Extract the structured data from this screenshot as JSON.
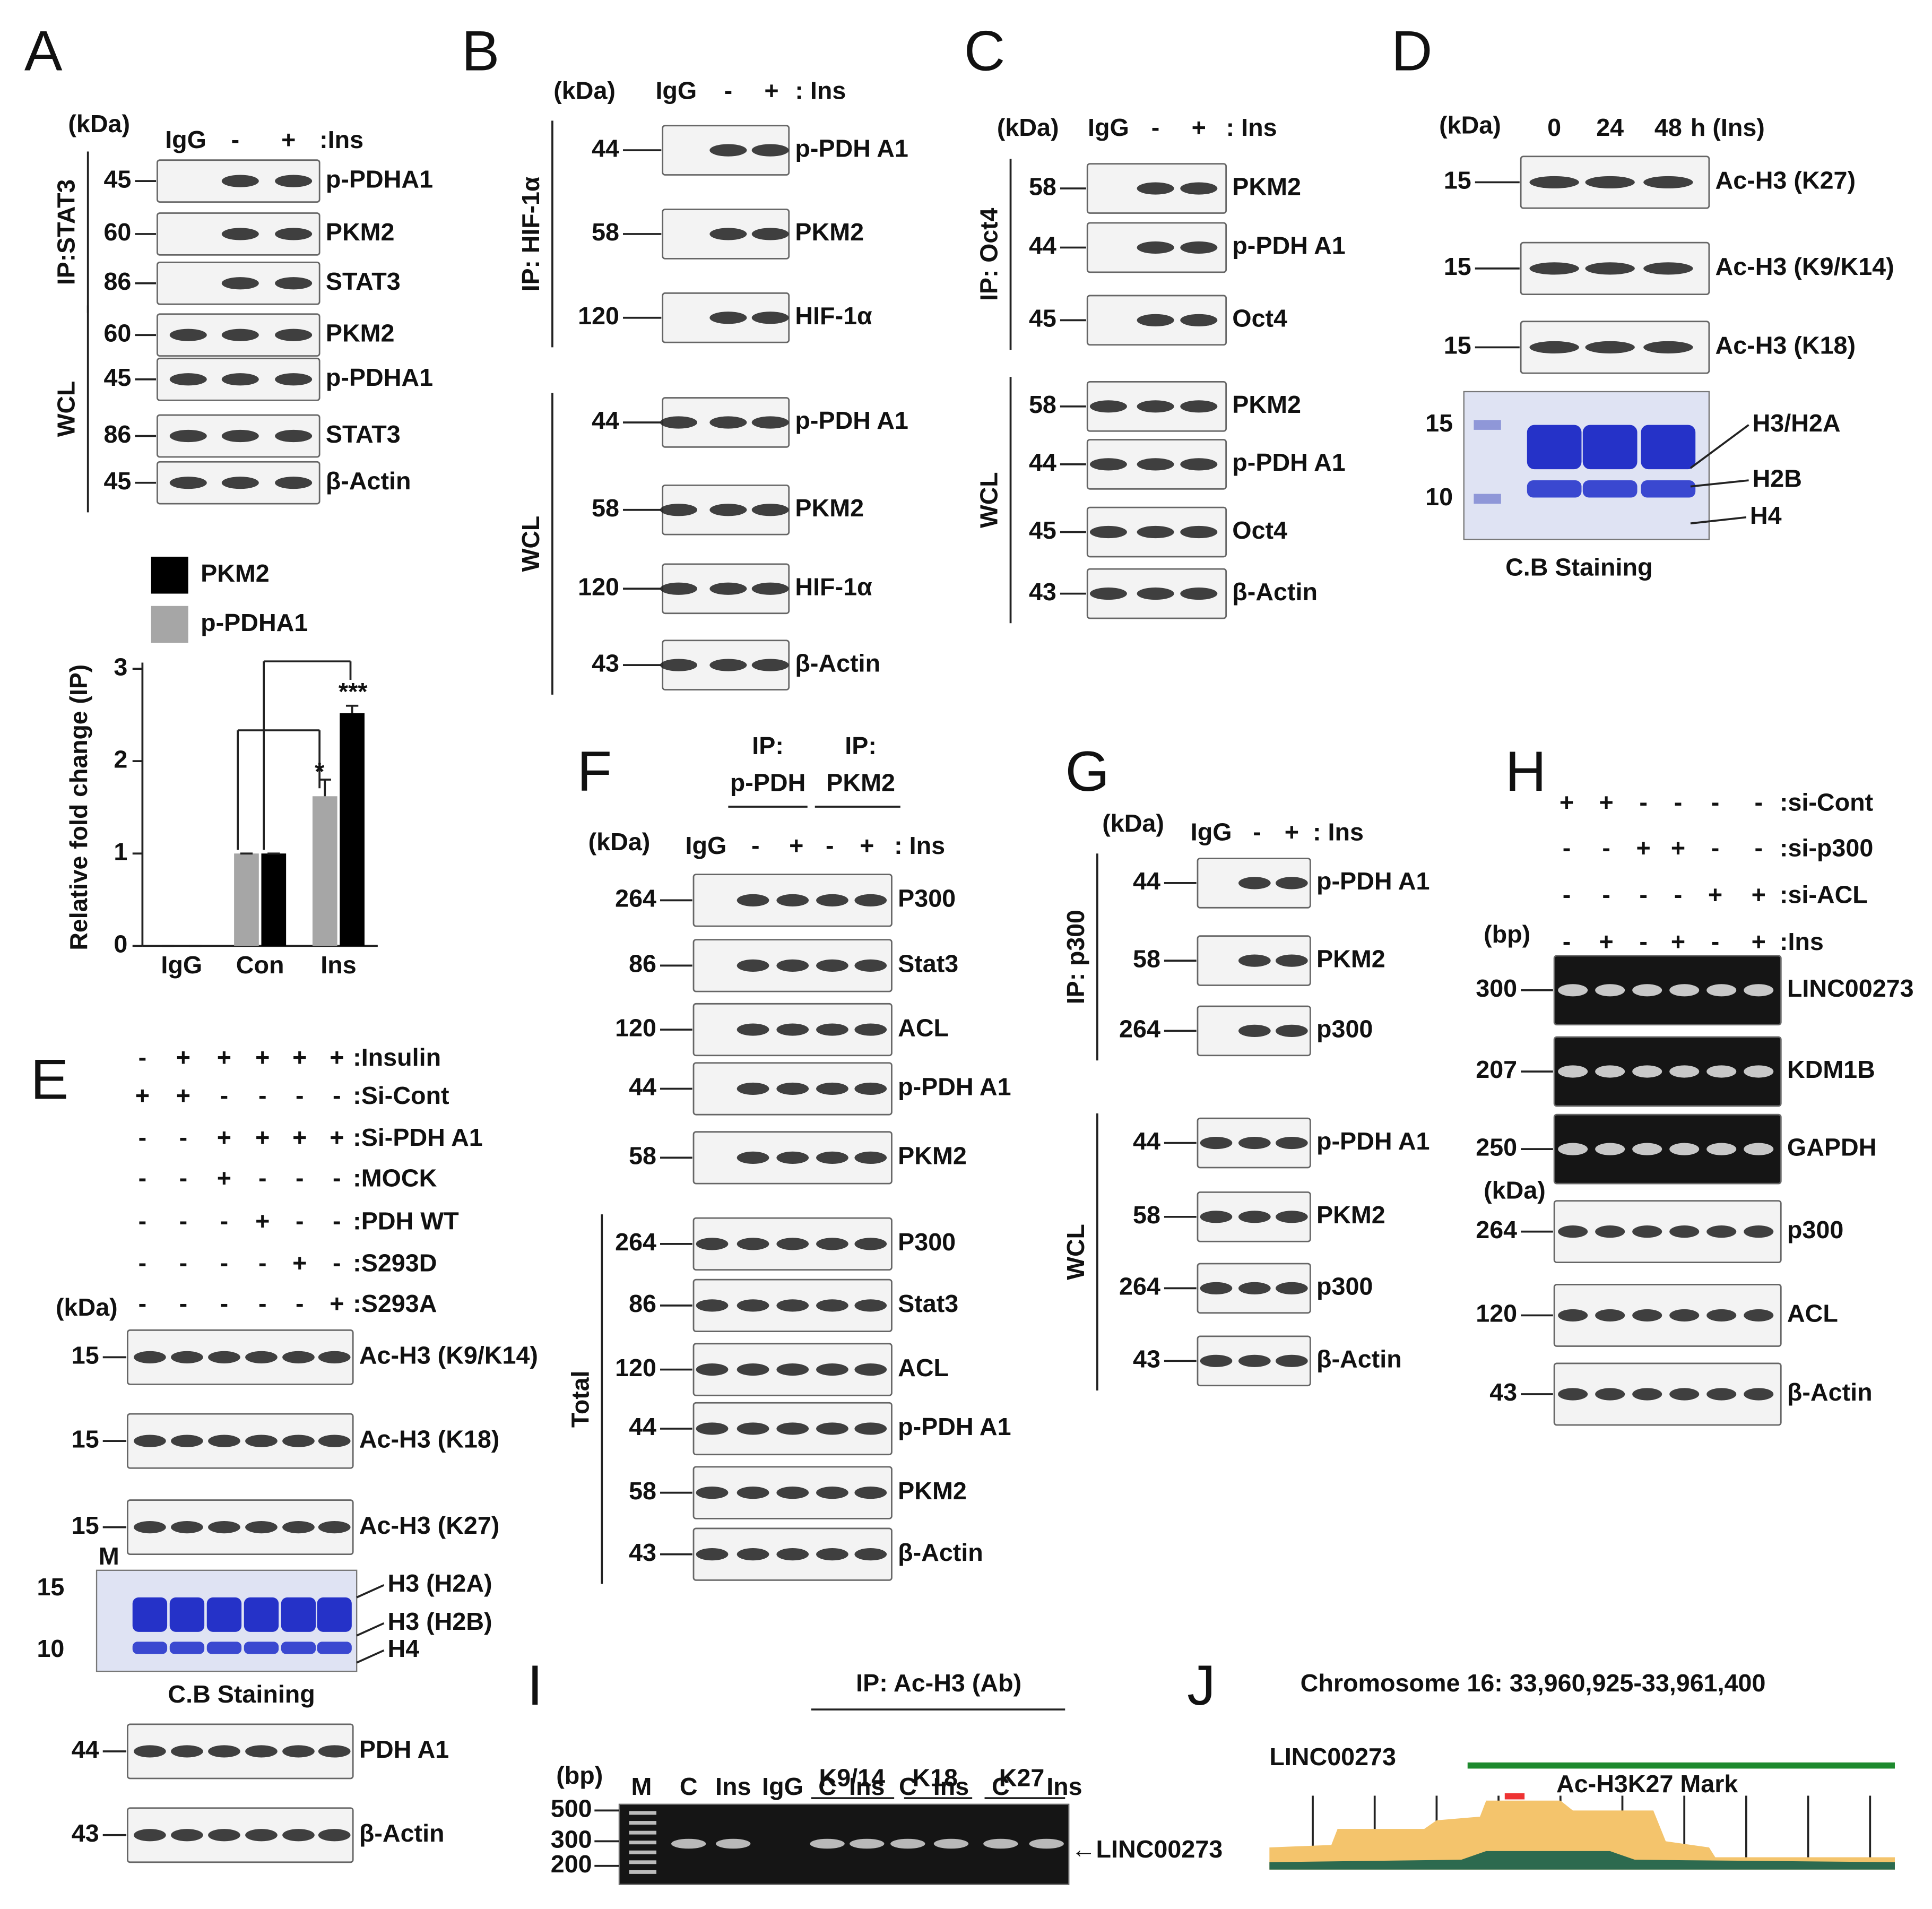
{
  "panels": {
    "A": {
      "letter": "A",
      "kda_header": "(kDa)",
      "lanes": [
        "IgG",
        "-",
        "+",
        ":Ins"
      ],
      "groups": [
        {
          "label": "IP:STAT3",
          "rows": [
            {
              "kda": "45",
              "name": "p-PDHA1"
            },
            {
              "kda": "60",
              "name": "PKM2"
            },
            {
              "kda": "86",
              "name": "STAT3"
            }
          ]
        },
        {
          "label": "WCL",
          "rows": [
            {
              "kda": "60",
              "name": "PKM2"
            },
            {
              "kda": "45",
              "name": "p-PDHA1"
            },
            {
              "kda": "86",
              "name": "STAT3"
            },
            {
              "kda": "45",
              "name": "β-Actin"
            }
          ]
        }
      ],
      "chart": {
        "type": "bar",
        "ylabel": "Relative fold change (IP)",
        "categories": [
          "IgG",
          "Con",
          "Ins"
        ],
        "series": [
          {
            "name": "PKM2",
            "color": "#000000",
            "values": [
              0,
              1,
              2.52
            ],
            "errors": [
              0,
              0,
              0.08
            ]
          },
          {
            "name": "p-PDHA1",
            "color": "#a6a6a6",
            "values": [
              0,
              1,
              1.62
            ],
            "errors": [
              0,
              0,
              0.18
            ]
          }
        ],
        "ylim": [
          0,
          3
        ],
        "yticks": [
          0,
          1,
          2,
          3
        ],
        "annotations": [
          "*",
          "***"
        ]
      }
    },
    "B": {
      "letter": "B",
      "kda_header": "(kDa)",
      "lanes": [
        "IgG",
        "-",
        "+",
        ": Ins"
      ],
      "groups": [
        {
          "label": "IP: HIF-1α",
          "rows": [
            {
              "kda": "44",
              "name": "p-PDH A1"
            },
            {
              "kda": "58",
              "name": "PKM2"
            },
            {
              "kda": "120",
              "name": "HIF-1α"
            }
          ]
        },
        {
          "label": "WCL",
          "rows": [
            {
              "kda": "44",
              "name": "p-PDH A1"
            },
            {
              "kda": "58",
              "name": "PKM2"
            },
            {
              "kda": "120",
              "name": "HIF-1α"
            },
            {
              "kda": "43",
              "name": "β-Actin"
            }
          ]
        }
      ]
    },
    "C": {
      "letter": "C",
      "kda_header": "(kDa)",
      "lanes": [
        "IgG",
        "-",
        "+",
        ": Ins"
      ],
      "groups": [
        {
          "label": "IP: Oct4",
          "rows": [
            {
              "kda": "58",
              "name": "PKM2"
            },
            {
              "kda": "44",
              "name": "p-PDH A1"
            },
            {
              "kda": "45",
              "name": "Oct4"
            }
          ]
        },
        {
          "label": "WCL",
          "rows": [
            {
              "kda": "58",
              "name": "PKM2"
            },
            {
              "kda": "44",
              "name": "p-PDH A1"
            },
            {
              "kda": "45",
              "name": "Oct4"
            },
            {
              "kda": "43",
              "name": "β-Actin"
            }
          ]
        }
      ]
    },
    "D": {
      "letter": "D",
      "kda_header": "(kDa)",
      "lanes": [
        "0",
        "24",
        "48",
        "h (Ins)"
      ],
      "groups": [
        {
          "rows": [
            {
              "kda": "15",
              "name": "Ac-H3 (K27)"
            },
            {
              "kda": "15",
              "name": "Ac-H3 (K9/K14)"
            },
            {
              "kda": "15",
              "name": "Ac-H3 (K18)"
            }
          ]
        }
      ],
      "gel": {
        "markers": [
          "15",
          "10"
        ],
        "bands": [
          "H3/H2A",
          "H2B",
          "H4"
        ],
        "caption": "C.B Staining"
      }
    },
    "E": {
      "letter": "E",
      "conditions": [
        {
          "signs": [
            "-",
            "+",
            "+",
            "+",
            "+",
            "+"
          ],
          "label": ":Insulin"
        },
        {
          "signs": [
            "+",
            "+",
            "-",
            "-",
            "-",
            "-"
          ],
          "label": ":Si-Cont"
        },
        {
          "signs": [
            "-",
            "-",
            "+",
            "+",
            "+",
            "+"
          ],
          "label": ":Si-PDH A1"
        },
        {
          "signs": [
            "-",
            "-",
            "+",
            "-",
            "-",
            "-"
          ],
          "label": ":MOCK"
        },
        {
          "signs": [
            "-",
            "-",
            "-",
            "+",
            "-",
            "-"
          ],
          "label": ":PDH WT"
        },
        {
          "signs": [
            "-",
            "-",
            "-",
            "-",
            "+",
            "-"
          ],
          "label": ":S293D"
        },
        {
          "signs": [
            "-",
            "-",
            "-",
            "-",
            "-",
            "+"
          ],
          "label": ":S293A"
        }
      ],
      "kda_header": "(kDa)",
      "groups": [
        {
          "rows": [
            {
              "kda": "15",
              "name": "Ac-H3 (K9/K14)"
            },
            {
              "kda": "15",
              "name": "Ac-H3 (K18)"
            },
            {
              "kda": "15",
              "name": "Ac-H3 (K27)"
            }
          ]
        },
        {
          "rows": [
            {
              "kda": "44",
              "name": "PDH A1"
            },
            {
              "kda": "43",
              "name": "β-Actin"
            }
          ]
        }
      ],
      "gel": {
        "lane_label": "M",
        "markers": [
          "15",
          "10"
        ],
        "bands": [
          "H3 (H2A)",
          "H3 (H2B)",
          "H4"
        ],
        "caption": "C.B Staining"
      }
    },
    "F": {
      "letter": "F",
      "ip_headers": [
        [
          "IP:",
          "p-PDH"
        ],
        [
          "IP:",
          "PKM2"
        ]
      ],
      "kda_header": "(kDa)",
      "lanes": [
        "IgG",
        "-",
        "+",
        "-",
        "+",
        ": Ins"
      ],
      "groups": [
        {
          "rows": [
            {
              "kda": "264",
              "name": "P300"
            },
            {
              "kda": "86",
              "name": "Stat3"
            },
            {
              "kda": "120",
              "name": "ACL"
            },
            {
              "kda": "44",
              "name": "p-PDH A1"
            },
            {
              "kda": "58",
              "name": "PKM2"
            }
          ]
        },
        {
          "label": "Total",
          "rows": [
            {
              "kda": "264",
              "name": "P300"
            },
            {
              "kda": "86",
              "name": "Stat3"
            },
            {
              "kda": "120",
              "name": "ACL"
            },
            {
              "kda": "44",
              "name": "p-PDH A1"
            },
            {
              "kda": "58",
              "name": "PKM2"
            },
            {
              "kda": "43",
              "name": "β-Actin"
            }
          ]
        }
      ]
    },
    "G": {
      "letter": "G",
      "kda_header": "(kDa)",
      "lanes": [
        "IgG",
        "-",
        "+",
        ": Ins"
      ],
      "groups": [
        {
          "label": "IP: p300",
          "rows": [
            {
              "kda": "44",
              "name": "p-PDH A1"
            },
            {
              "kda": "58",
              "name": "PKM2"
            },
            {
              "kda": "264",
              "name": "p300"
            }
          ]
        },
        {
          "label": "WCL",
          "rows": [
            {
              "kda": "44",
              "name": "p-PDH A1"
            },
            {
              "kda": "58",
              "name": "PKM2"
            },
            {
              "kda": "264",
              "name": "p300"
            },
            {
              "kda": "43",
              "name": "β-Actin"
            }
          ]
        }
      ]
    },
    "H": {
      "letter": "H",
      "conditions": [
        {
          "signs": [
            "+",
            "+",
            "-",
            "-",
            "-",
            "-"
          ],
          "label": ":si-Cont"
        },
        {
          "signs": [
            "-",
            "-",
            "+",
            "+",
            "-",
            "-"
          ],
          "label": ":si-p300"
        },
        {
          "signs": [
            "-",
            "-",
            "-",
            "-",
            "+",
            "+"
          ],
          "label": ":si-ACL"
        },
        {
          "signs": [
            "-",
            "+",
            "-",
            "+",
            "-",
            "+"
          ],
          "label": ":Ins"
        }
      ],
      "bp_header": "(bp)",
      "kda_header": "(kDa)",
      "groups": [
        {
          "rows": [
            {
              "kda": "300",
              "name": "LINC00273"
            },
            {
              "kda": "207",
              "name": "KDM1B"
            },
            {
              "kda": "250",
              "name": "GAPDH"
            }
          ]
        },
        {
          "rows": [
            {
              "kda": "264",
              "name": "p300"
            },
            {
              "kda": "120",
              "name": "ACL"
            },
            {
              "kda": "43",
              "name": "β-Actin"
            }
          ]
        }
      ]
    },
    "I": {
      "letter": "I",
      "header": "IP: Ac-H3 (Ab)",
      "subheaders": [
        "K9/14",
        "K18",
        "K27"
      ],
      "bp_header": "(bp)",
      "lanes": [
        "M",
        "C",
        "Ins",
        "IgG",
        "C",
        "Ins",
        "C",
        "Ins",
        "C",
        "Ins"
      ],
      "markers": [
        "500",
        "300",
        "200"
      ],
      "product": "←LINC00273"
    },
    "J": {
      "letter": "J",
      "title": "Chromosome 16: 33,960,925-33,961,400",
      "track": "LINC00273",
      "mark": "Ac-H3K27 Mark"
    }
  }
}
